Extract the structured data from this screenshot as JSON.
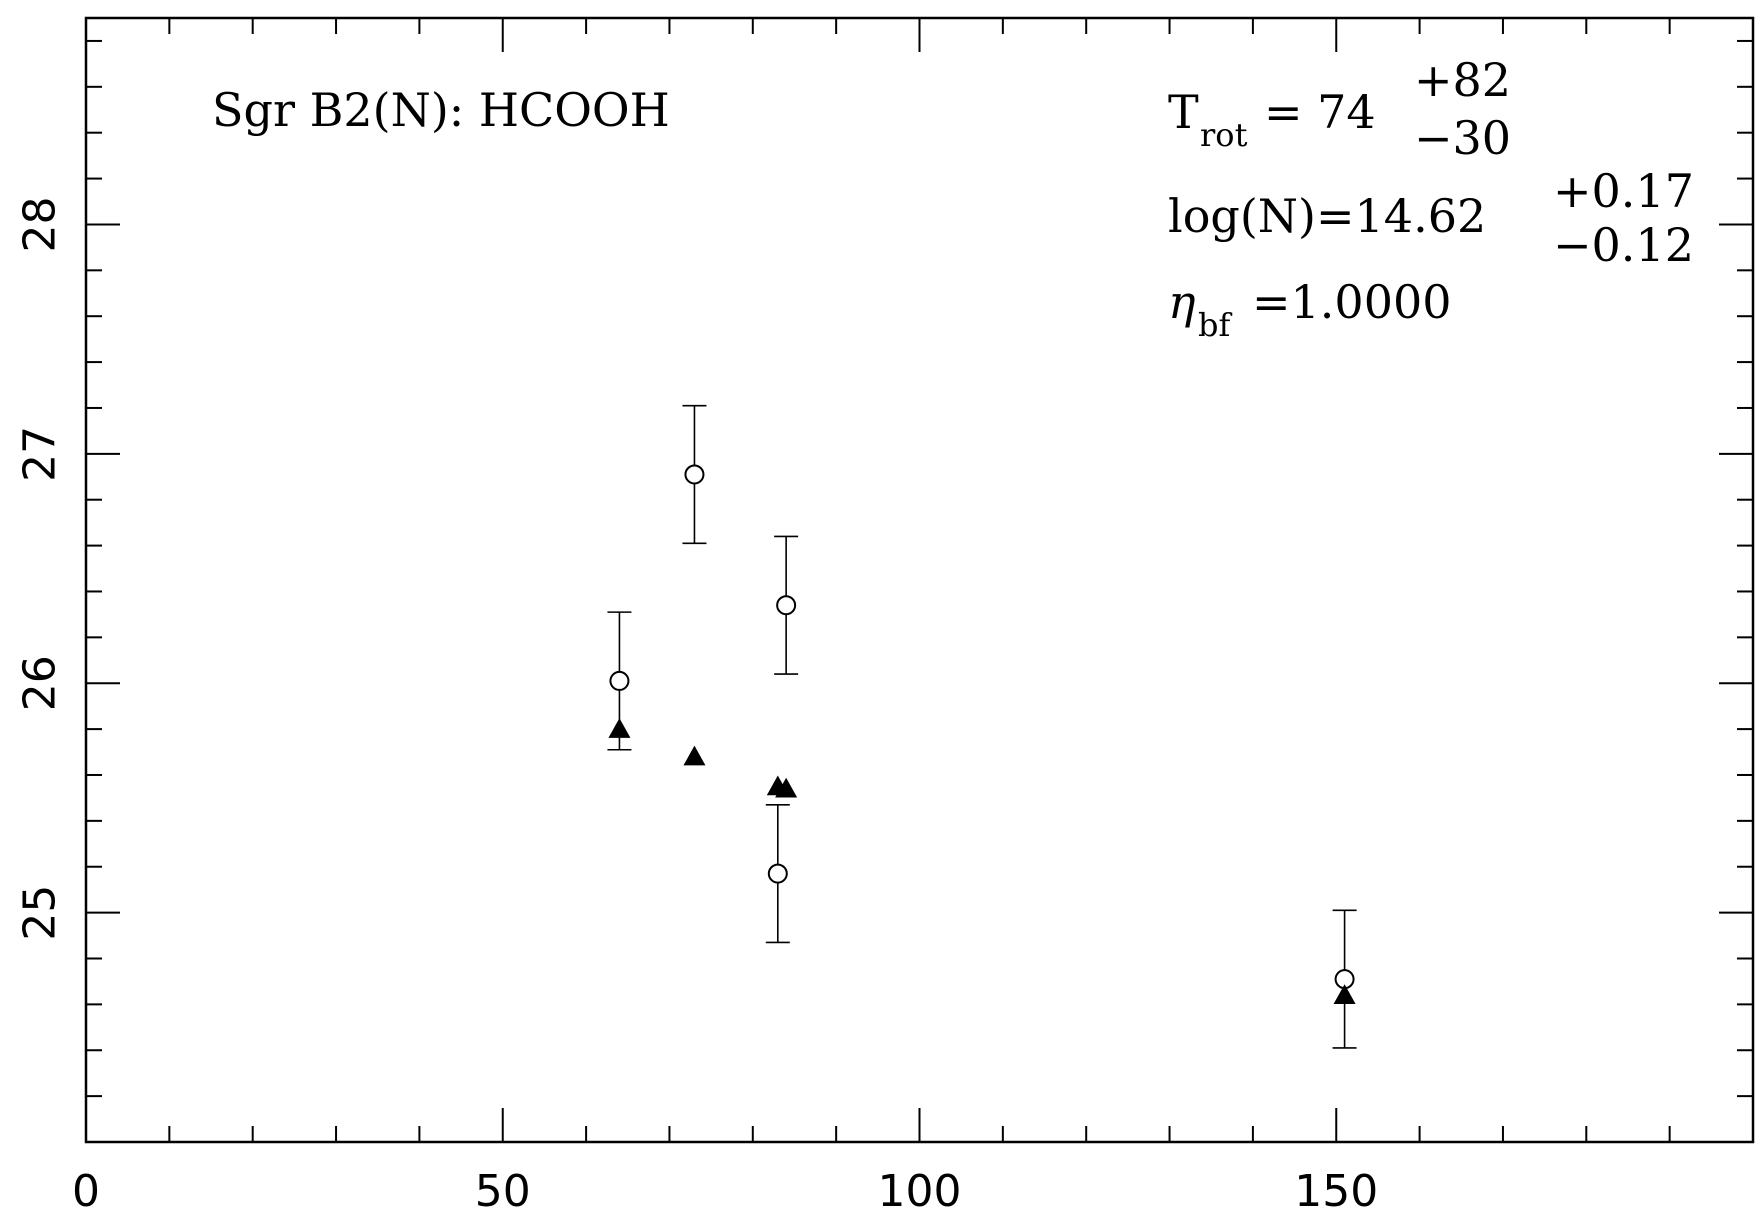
{
  "chart_data": {
    "type": "scatter",
    "title": "Sgr B2(N): HCOOH",
    "xlabel": "",
    "ylabel": "",
    "xlim": [
      0,
      200
    ],
    "ylim": [
      24.0,
      28.9
    ],
    "x_ticks": [
      0,
      50,
      100,
      150
    ],
    "y_ticks": [
      25,
      26,
      27,
      28
    ],
    "grid": false,
    "series": [
      {
        "marker": "open-circle",
        "points": [
          {
            "x": 64,
            "y": 26.01,
            "err_low": 0.3,
            "err_high": 0.3
          },
          {
            "x": 73,
            "y": 26.91,
            "err_low": 0.3,
            "err_high": 0.3
          },
          {
            "x": 84,
            "y": 26.34,
            "err_low": 0.3,
            "err_high": 0.3
          },
          {
            "x": 83,
            "y": 25.17,
            "err_low": 0.3,
            "err_high": 0.3
          },
          {
            "x": 151,
            "y": 24.71,
            "err_low": 0.3,
            "err_high": 0.3
          }
        ]
      },
      {
        "marker": "filled-triangle",
        "points": [
          {
            "x": 64,
            "y": 25.8
          },
          {
            "x": 73,
            "y": 25.68
          },
          {
            "x": 83,
            "y": 25.55
          },
          {
            "x": 84,
            "y": 25.54
          },
          {
            "x": 151,
            "y": 24.64
          }
        ]
      }
    ],
    "annotations": {
      "trot_symbol": "T",
      "trot_sub": "rot",
      "trot_eq": "=  74",
      "trot_plus": "+82",
      "trot_minus": "−30",
      "logn_text": "log(N)=14.62",
      "logn_plus": "+0.17",
      "logn_minus": "−0.12",
      "eta_symbol": "η",
      "eta_sub": "bf",
      "eta_value": "=1.0000"
    }
  }
}
